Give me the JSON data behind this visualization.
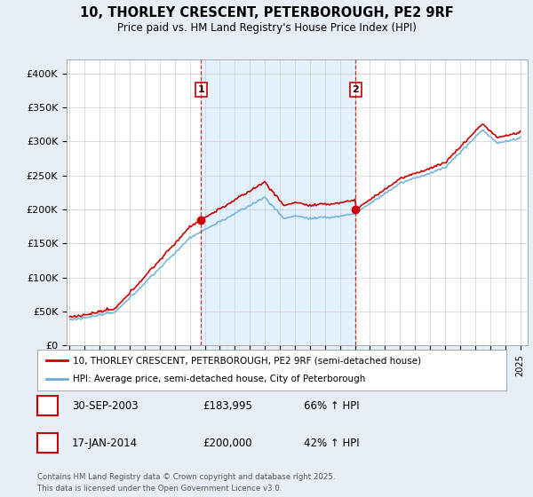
{
  "title_line1": "10, THORLEY CRESCENT, PETERBOROUGH, PE2 9RF",
  "title_line2": "Price paid vs. HM Land Registry's House Price Index (HPI)",
  "sale1_price": 183995,
  "sale2_price": 200000,
  "legend_line1": "10, THORLEY CRESCENT, PETERBOROUGH, PE2 9RF (semi-detached house)",
  "legend_line2": "HPI: Average price, semi-detached house, City of Peterborough",
  "hpi_color": "#6baed6",
  "price_color": "#cc0000",
  "sale_marker_color": "#cc0000",
  "background_color": "#e8eef5",
  "plot_bg_color": "#ffffff",
  "shade_color": "#ddeeff",
  "grid_color": "#cccccc",
  "ylim": [
    0,
    420000
  ],
  "yticks": [
    0,
    50000,
    100000,
    150000,
    200000,
    250000,
    300000,
    350000,
    400000
  ],
  "ytick_labels": [
    "£0",
    "£50K",
    "£100K",
    "£150K",
    "£200K",
    "£250K",
    "£300K",
    "£350K",
    "£400K"
  ],
  "sale1_year": 2003.75,
  "sale2_year": 2014.04,
  "footnote_line1": "Contains HM Land Registry data © Crown copyright and database right 2025.",
  "footnote_line2": "This data is licensed under the Open Government Licence v3.0."
}
